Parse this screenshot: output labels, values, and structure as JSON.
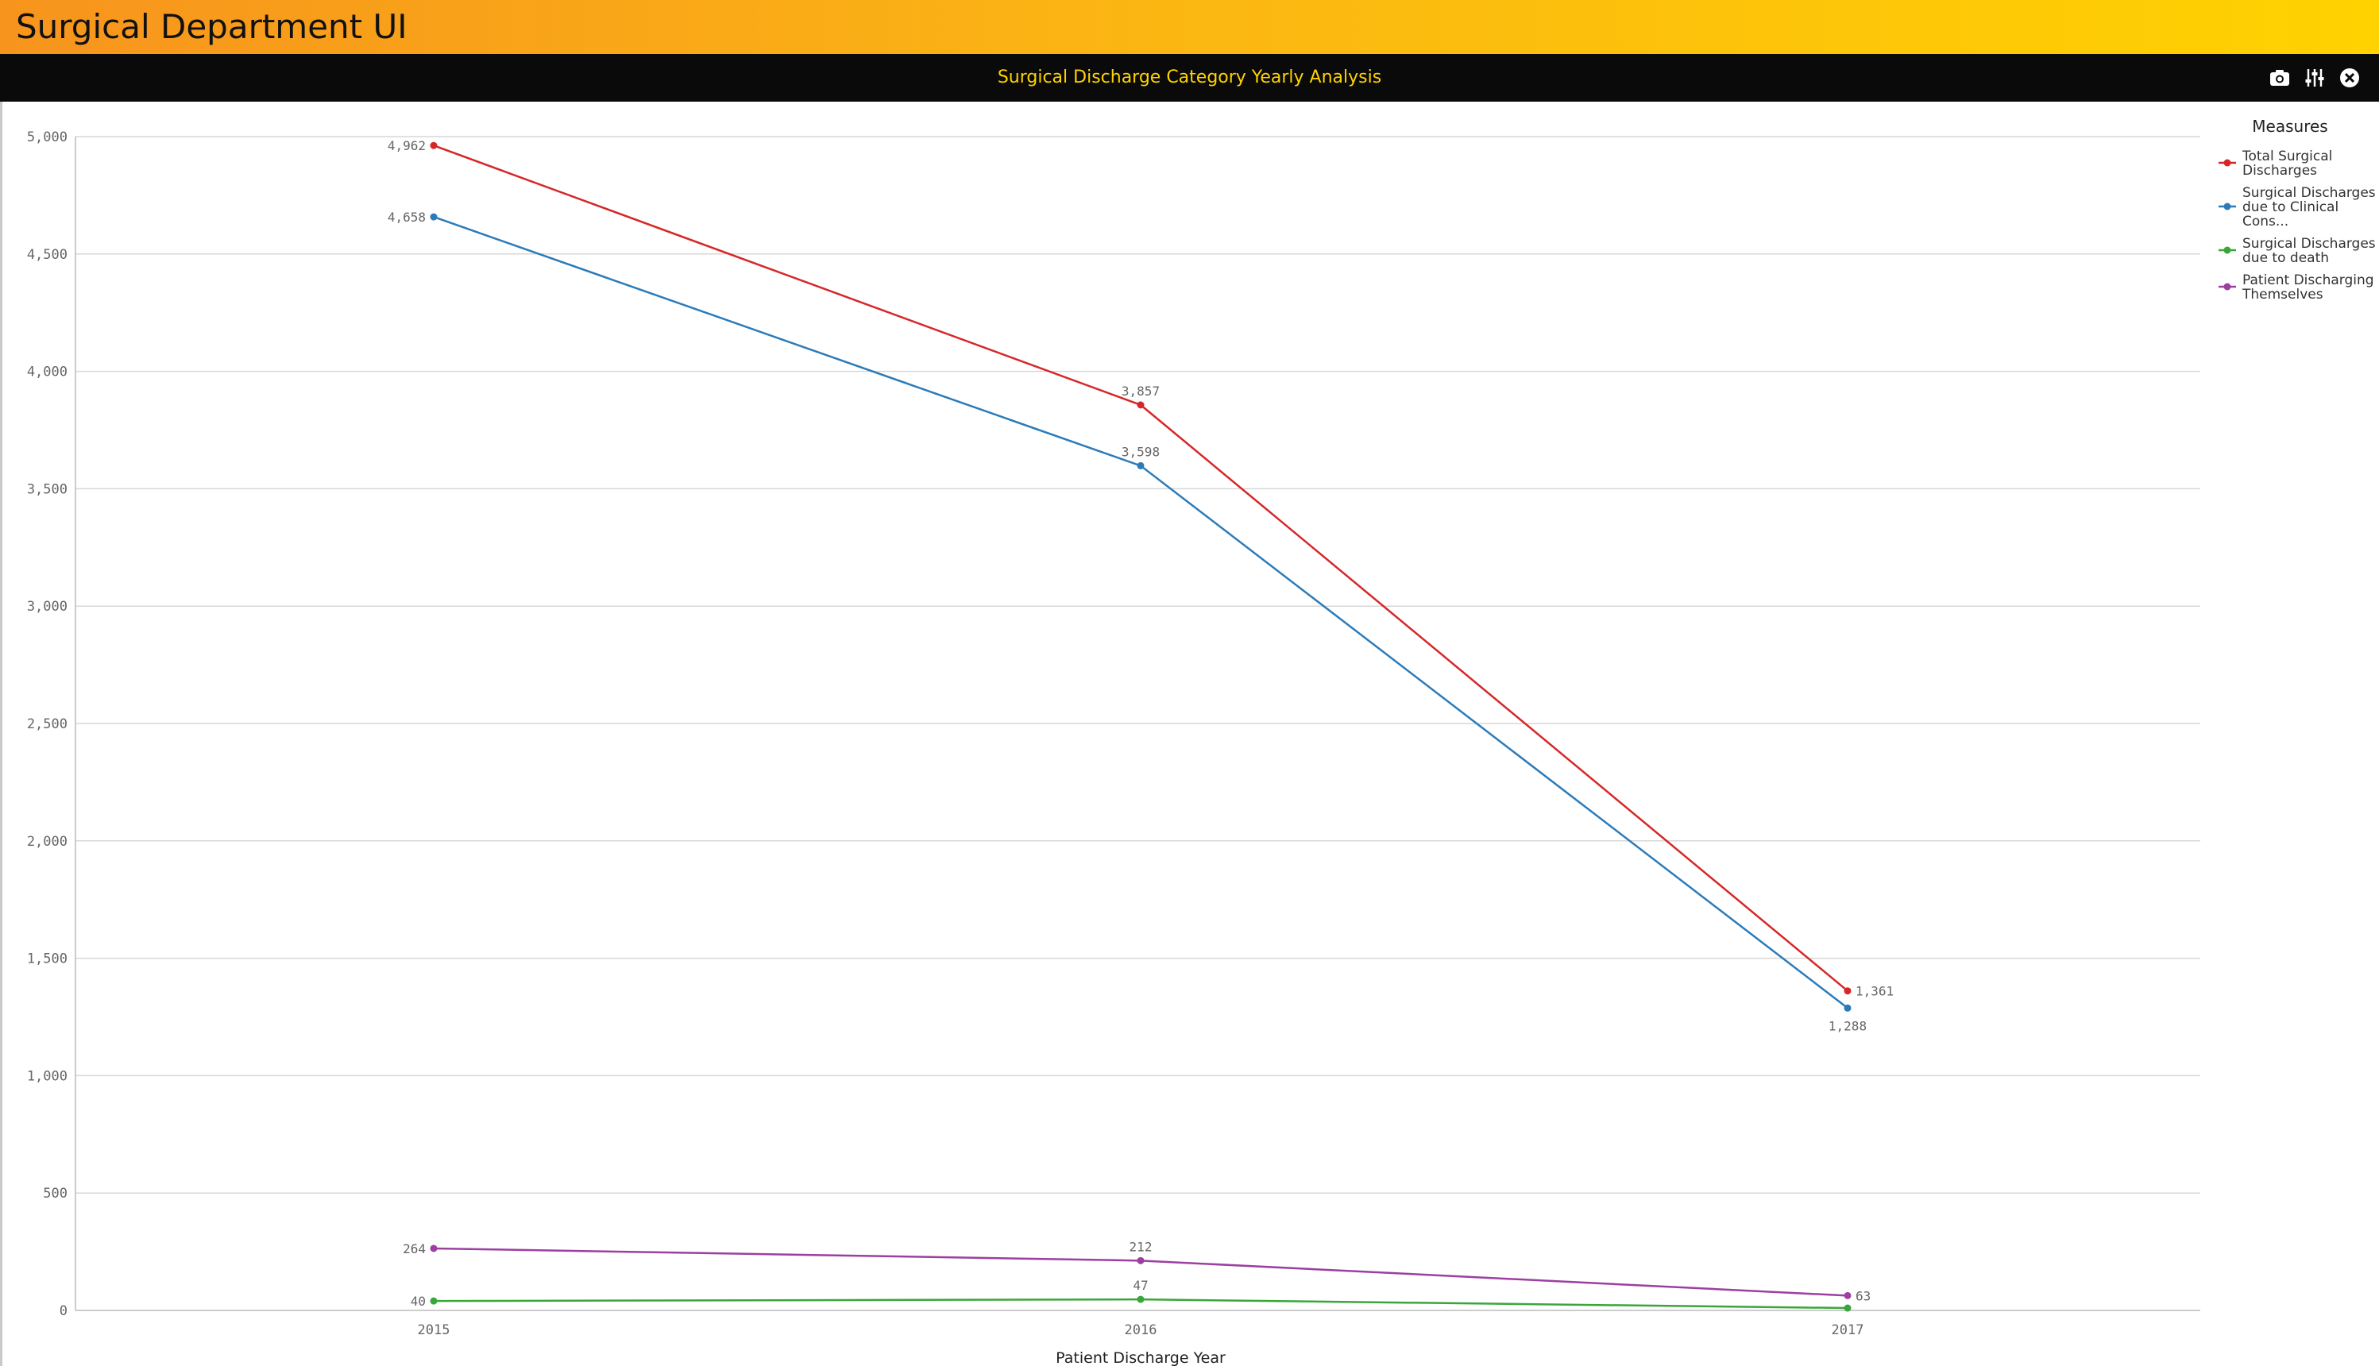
{
  "app": {
    "title": "Surgical Department UI"
  },
  "panel": {
    "title": "Surgical Discharge Category Yearly Analysis",
    "icons": [
      "camera-icon",
      "sliders-icon",
      "close-icon"
    ]
  },
  "chart_data": {
    "type": "line",
    "title": "",
    "xlabel": "Patient Discharge Year",
    "ylabel": "",
    "categories": [
      "2015",
      "2016",
      "2017"
    ],
    "ylim": [
      0,
      5000
    ],
    "yticks": [
      0,
      500,
      1000,
      1500,
      2000,
      2500,
      3000,
      3500,
      4000,
      4500,
      5000
    ],
    "ytick_labels": [
      "0",
      "500",
      "1,000",
      "1,500",
      "2,000",
      "2,500",
      "3,000",
      "3,500",
      "4,000",
      "4,500",
      "5,000"
    ],
    "grid": true,
    "legend": {
      "title": "Measures",
      "position": "top-right"
    },
    "series": [
      {
        "name": "Total Surgical Discharges",
        "legend_lines": [
          "Total Surgical",
          "Discharges"
        ],
        "color": "#d62728",
        "values": [
          4962,
          3857,
          1361
        ],
        "labels": [
          "4,962",
          "3,857",
          "1,361"
        ]
      },
      {
        "name": "Surgical Discharges due to Clinical Cons...",
        "legend_lines": [
          "Surgical Discharges",
          "due to Clinical",
          "Cons..."
        ],
        "color": "#2b7bb9",
        "values": [
          4658,
          3598,
          1288
        ],
        "labels": [
          "4,658",
          "3,598",
          "1,288"
        ]
      },
      {
        "name": "Surgical Discharges due to death",
        "legend_lines": [
          "Surgical Discharges",
          "due to death"
        ],
        "color": "#3aa63a",
        "values": [
          40,
          47,
          10
        ],
        "labels": [
          "40",
          "47",
          ""
        ]
      },
      {
        "name": "Patient Discharging Themselves",
        "legend_lines": [
          "Patient Discharging",
          "Themselves"
        ],
        "color": "#9c3fa0",
        "values": [
          264,
          212,
          63
        ],
        "labels": [
          "264",
          "212",
          "63"
        ]
      }
    ]
  }
}
